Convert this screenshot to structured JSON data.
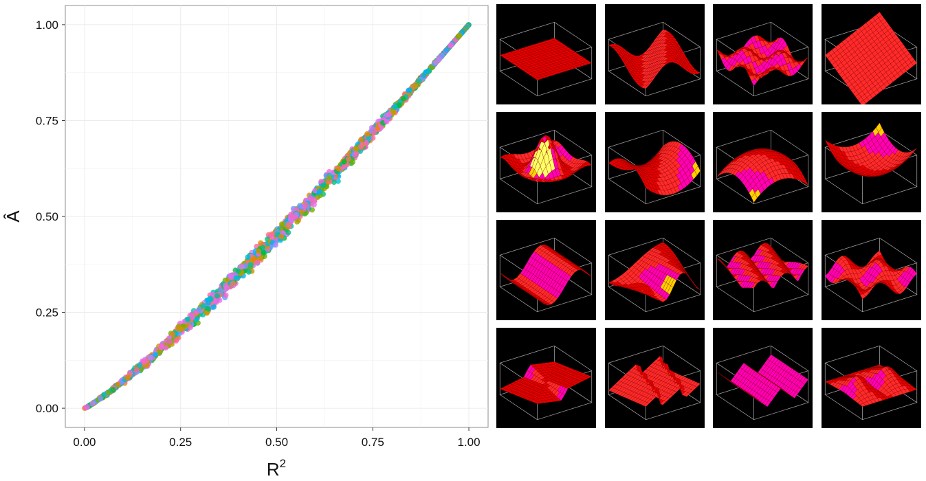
{
  "chart_data": {
    "type": "scatter",
    "title": "",
    "xlabel": "R",
    "xlabel_superscript": "2",
    "ylabel": "Â",
    "xlim": [
      -0.05,
      1.05
    ],
    "ylim": [
      -0.05,
      1.05
    ],
    "x_ticks": [
      "0.00",
      "0.25",
      "0.50",
      "0.75",
      "1.00"
    ],
    "y_ticks": [
      "0.00",
      "0.25",
      "0.50",
      "0.75",
      "1.00"
    ],
    "grid": true,
    "legend": "none",
    "relation": "A-hat approximately R^(1.15), monotone increasing from (0,0) to (1,1), scatter band width about 0.05",
    "n_points_approx": 1600,
    "point_colors": [
      "#F8766D",
      "#E58700",
      "#C99800",
      "#A3A500",
      "#6BB100",
      "#00BA38",
      "#00BF7D",
      "#00C0AF",
      "#00BCD8",
      "#00B0F6",
      "#619CFF",
      "#B983FF",
      "#E76BF3",
      "#FD61D1",
      "#FF67A4",
      "#F564E3"
    ],
    "background": "#FFFFFF",
    "grid_color": "#EBEBEB"
  },
  "surface_panels": {
    "rows": 4,
    "cols": 4,
    "panel_background": "#000000",
    "box_color": "#9a9a9a",
    "surface_colors": [
      "#e80000",
      "#ff2a2a",
      "#ff00b4",
      "#ffd000",
      "#ffff66"
    ],
    "panels": [
      {
        "shape": "flat-plane"
      },
      {
        "shape": "wavy-sine"
      },
      {
        "shape": "bumps-grid"
      },
      {
        "shape": "tilted-triangle"
      },
      {
        "shape": "ripple-spike"
      },
      {
        "shape": "saddle"
      },
      {
        "shape": "dome"
      },
      {
        "shape": "bowl"
      },
      {
        "shape": "ridge-wave"
      },
      {
        "shape": "twisted-wave"
      },
      {
        "shape": "parallel-ridges"
      },
      {
        "shape": "interference"
      },
      {
        "shape": "thin-strips"
      },
      {
        "shape": "sawtooth-sheets"
      },
      {
        "shape": "folded-sheets"
      },
      {
        "shape": "zigzag-peaks"
      }
    ]
  }
}
